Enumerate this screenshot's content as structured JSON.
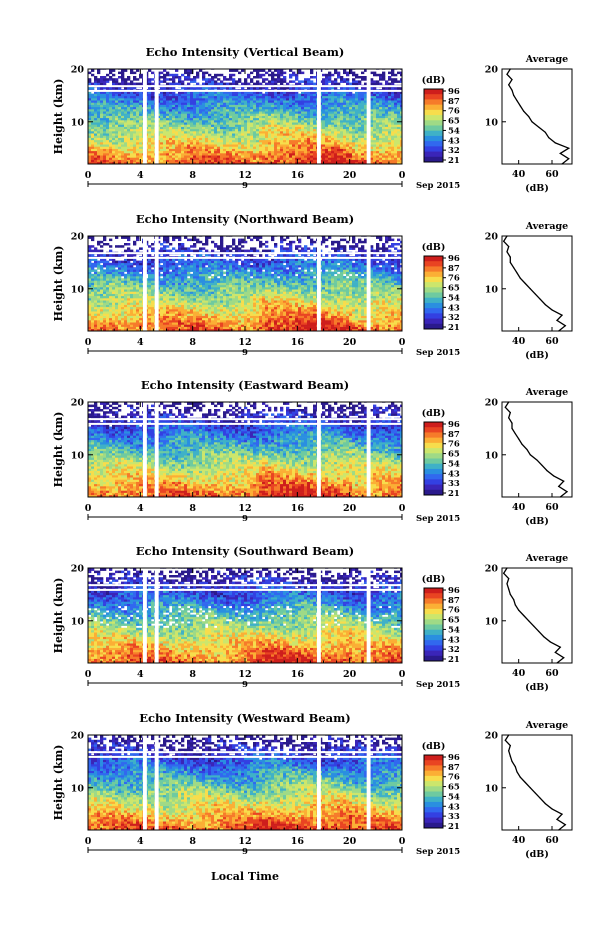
{
  "figure": {
    "x_axis_label": "Local Time",
    "date_label": "Sep 2015",
    "date_day": "9",
    "y_axis_label": "Height (km)",
    "colorbar_unit": "(dB)",
    "profile_title": "Average",
    "profile_xlabel": "(dB)"
  },
  "colormap": [
    "#ce1e1c",
    "#e94422",
    "#f67b2a",
    "#fbaf35",
    "#f7dd4c",
    "#cce66c",
    "#9fda86",
    "#6ecaa0",
    "#3fb1c7",
    "#2a8fe0",
    "#3168ef",
    "#3340e2",
    "#3a25b8",
    "#2a1a8c"
  ],
  "chart_data": [
    {
      "type": "heatmap",
      "title": "Echo Intensity (Vertical Beam)",
      "x_ticks": [
        "0",
        "4",
        "8",
        "12",
        "16",
        "20",
        "0"
      ],
      "xlim": [
        0,
        24
      ],
      "y_ticks": [
        "20",
        "10"
      ],
      "ylim": [
        2,
        20
      ],
      "colorbar_ticks": [
        "96",
        "87",
        "76",
        "65",
        "54",
        "43",
        "32",
        "21"
      ],
      "colorbar_range": [
        21,
        96
      ],
      "data_gaps_hours": [
        [
          4.2,
          4.5
        ],
        [
          5.1,
          5.4
        ],
        [
          17.5,
          17.8
        ],
        [
          21.3,
          21.6
        ]
      ],
      "profile": {
        "x_ticks": [
          "40",
          "60"
        ],
        "xlim": [
          30,
          72
        ],
        "y_ticks": [
          "20",
          "10"
        ],
        "ylim": [
          2,
          20
        ],
        "height_km": [
          2,
          3,
          4,
          5,
          6,
          7,
          8,
          9,
          10,
          11,
          12,
          13,
          14,
          15,
          16,
          17,
          18,
          19,
          20
        ],
        "mean_db": [
          66,
          70,
          65,
          70,
          62,
          58,
          56,
          52,
          48,
          46,
          43,
          41,
          39,
          37,
          36,
          34,
          36,
          33,
          35
        ]
      }
    },
    {
      "type": "heatmap",
      "title": "Echo Intensity (Northward Beam)",
      "x_ticks": [
        "0",
        "4",
        "8",
        "12",
        "16",
        "20",
        "0"
      ],
      "xlim": [
        0,
        24
      ],
      "y_ticks": [
        "20",
        "10"
      ],
      "ylim": [
        2,
        20
      ],
      "colorbar_ticks": [
        "96",
        "87",
        "76",
        "65",
        "54",
        "43",
        "32",
        "21"
      ],
      "colorbar_range": [
        21,
        96
      ],
      "data_gaps_hours": [
        [
          4.2,
          4.5
        ],
        [
          5.1,
          5.4
        ],
        [
          17.5,
          17.8
        ],
        [
          21.3,
          21.6
        ]
      ],
      "profile": {
        "x_ticks": [
          "40",
          "60"
        ],
        "xlim": [
          30,
          72
        ],
        "y_ticks": [
          "20",
          "10"
        ],
        "ylim": [
          2,
          20
        ],
        "height_km": [
          2,
          3,
          4,
          5,
          6,
          7,
          8,
          9,
          10,
          11,
          12,
          13,
          14,
          15,
          16,
          17,
          18,
          19,
          20
        ],
        "mean_db": [
          64,
          68,
          63,
          66,
          60,
          56,
          53,
          50,
          47,
          44,
          41,
          39,
          37,
          35,
          35,
          33,
          34,
          31,
          33
        ]
      }
    },
    {
      "type": "heatmap",
      "title": "Echo Intensity (Eastward Beam)",
      "x_ticks": [
        "0",
        "4",
        "8",
        "12",
        "16",
        "20",
        "0"
      ],
      "xlim": [
        0,
        24
      ],
      "y_ticks": [
        "20",
        "10"
      ],
      "ylim": [
        2,
        20
      ],
      "colorbar_ticks": [
        "96",
        "87",
        "76",
        "65",
        "54",
        "43",
        "33",
        "21"
      ],
      "colorbar_range": [
        21,
        96
      ],
      "data_gaps_hours": [
        [
          4.2,
          4.5
        ],
        [
          5.1,
          5.4
        ],
        [
          17.5,
          17.8
        ],
        [
          21.3,
          21.6
        ]
      ],
      "profile": {
        "x_ticks": [
          "40",
          "60"
        ],
        "xlim": [
          30,
          72
        ],
        "y_ticks": [
          "20",
          "10"
        ],
        "ylim": [
          2,
          20
        ],
        "height_km": [
          2,
          3,
          4,
          5,
          6,
          7,
          8,
          9,
          10,
          11,
          12,
          13,
          14,
          15,
          16,
          17,
          18,
          19,
          20
        ],
        "mean_db": [
          65,
          69,
          64,
          67,
          61,
          57,
          54,
          51,
          47,
          45,
          42,
          40,
          38,
          36,
          36,
          34,
          35,
          32,
          34
        ]
      }
    },
    {
      "type": "heatmap",
      "title": "Echo Intensity (Southward Beam)",
      "x_ticks": [
        "0",
        "4",
        "8",
        "12",
        "16",
        "20",
        "0"
      ],
      "xlim": [
        0,
        24
      ],
      "y_ticks": [
        "20",
        "10"
      ],
      "ylim": [
        2,
        20
      ],
      "colorbar_ticks": [
        "96",
        "87",
        "76",
        "65",
        "54",
        "43",
        "32",
        "21"
      ],
      "colorbar_range": [
        21,
        96
      ],
      "data_gaps_hours": [
        [
          4.2,
          4.5
        ],
        [
          5.1,
          5.4
        ],
        [
          17.5,
          17.8
        ],
        [
          21.3,
          21.6
        ]
      ],
      "profile": {
        "x_ticks": [
          "40",
          "60"
        ],
        "xlim": [
          30,
          72
        ],
        "y_ticks": [
          "20",
          "10"
        ],
        "ylim": [
          2,
          20
        ],
        "height_km": [
          2,
          3,
          4,
          5,
          6,
          7,
          8,
          9,
          10,
          11,
          12,
          13,
          14,
          15,
          16,
          17,
          18,
          19,
          20
        ],
        "mean_db": [
          63,
          67,
          62,
          65,
          59,
          55,
          52,
          49,
          46,
          43,
          40,
          38,
          37,
          35,
          34,
          33,
          34,
          31,
          33
        ]
      }
    },
    {
      "type": "heatmap",
      "title": "Echo Intensity (Westward Beam)",
      "x_ticks": [
        "0",
        "4",
        "8",
        "12",
        "16",
        "20",
        "0"
      ],
      "xlim": [
        0,
        24
      ],
      "y_ticks": [
        "20",
        "10"
      ],
      "ylim": [
        2,
        20
      ],
      "colorbar_ticks": [
        "96",
        "87",
        "76",
        "65",
        "54",
        "43",
        "33",
        "21"
      ],
      "colorbar_range": [
        21,
        96
      ],
      "data_gaps_hours": [
        [
          4.2,
          4.5
        ],
        [
          5.1,
          5.4
        ],
        [
          17.5,
          17.8
        ],
        [
          21.3,
          21.6
        ]
      ],
      "profile": {
        "x_ticks": [
          "40",
          "60"
        ],
        "xlim": [
          30,
          72
        ],
        "y_ticks": [
          "20",
          "10"
        ],
        "ylim": [
          2,
          20
        ],
        "height_km": [
          2,
          3,
          4,
          5,
          6,
          7,
          8,
          9,
          10,
          11,
          12,
          13,
          14,
          15,
          16,
          17,
          18,
          19,
          20
        ],
        "mean_db": [
          64,
          68,
          63,
          66,
          60,
          56,
          53,
          50,
          47,
          44,
          41,
          39,
          38,
          36,
          35,
          34,
          35,
          32,
          34
        ]
      }
    }
  ]
}
